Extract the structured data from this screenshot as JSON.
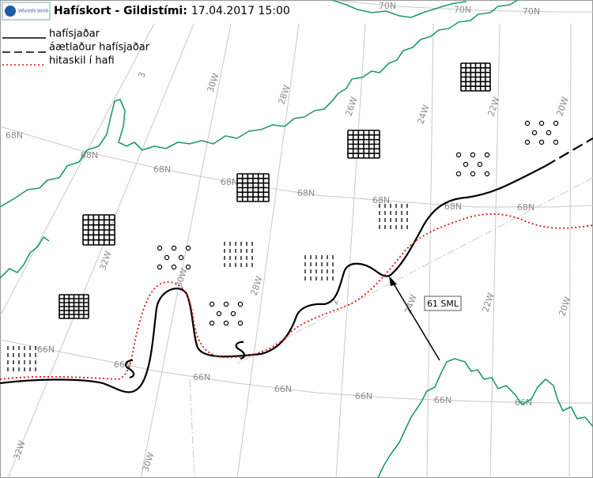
{
  "header": {
    "logo": "Veðurstofa Íslands",
    "title": "Hafískort - Gildistími:",
    "valid_time": "17.04.2017 15:00"
  },
  "legend": [
    "hafísjaðar",
    "áætlaður hafísjaðar",
    "hitaskil í hafi"
  ],
  "grid_labels": {
    "latitude": [
      "70N",
      "70N",
      "70N",
      "68N",
      "68N",
      "68N",
      "68N",
      "68N",
      "68N",
      "68N",
      "68N",
      "66N",
      "66N",
      "66N",
      "66N",
      "66N",
      "66N",
      "66N"
    ],
    "longitude": [
      "3",
      "30W",
      "28W",
      "26W",
      "24W",
      "22W",
      "20W",
      "32W",
      "30W",
      "28W",
      "2",
      "24W",
      "22W",
      "20W",
      "32W",
      "30W"
    ]
  },
  "annotations": {
    "ship_report": "61 SML"
  }
}
